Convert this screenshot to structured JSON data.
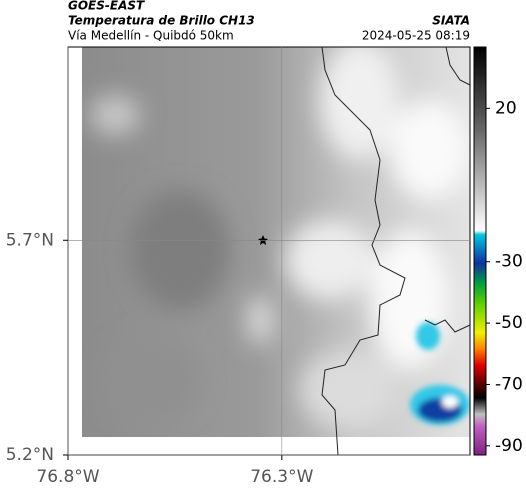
{
  "header": {
    "title": "GOES-EAST",
    "subtitle": "Temperatura de Brillo CH13",
    "region": "Vía Medellín - Quibdó 50km",
    "source": "SIATA",
    "datetime": "2024-05-25 08:19"
  },
  "map": {
    "xlim": [
      -76.8,
      -75.86
    ],
    "ylim": [
      5.2,
      6.15
    ],
    "xticks": [
      {
        "value": -76.8,
        "label": "76.8°W"
      },
      {
        "value": -76.3,
        "label": "76.3°W"
      }
    ],
    "yticks": [
      {
        "value": 5.7,
        "label": "5.7°N"
      },
      {
        "value": 5.2,
        "label": "5.2°N"
      }
    ]
  },
  "colorbar": {
    "lim": [
      40,
      -93
    ],
    "ticks": [
      20,
      -30,
      -50,
      -70,
      -90
    ]
  }
}
